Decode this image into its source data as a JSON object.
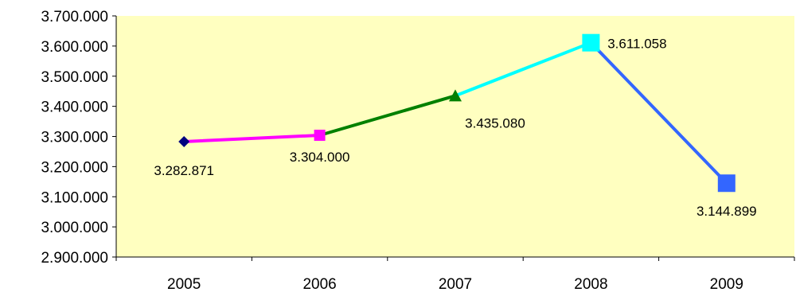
{
  "chart_data": {
    "type": "line",
    "title": "",
    "xlabel": "",
    "ylabel": "",
    "categories": [
      "2005",
      "2006",
      "2007",
      "2008",
      "2009"
    ],
    "values": [
      3282871,
      3304000,
      3435080,
      3611058,
      3144899
    ],
    "data_labels": [
      "3.282.871",
      "3.304.000",
      "3.435.080",
      "3.611.058",
      "3.144.899"
    ],
    "ylim": [
      2900000,
      3700000
    ],
    "ytick_values": [
      2900000,
      3000000,
      3100000,
      3200000,
      3300000,
      3400000,
      3500000,
      3600000,
      3700000
    ],
    "ytick_labels": [
      "2.900.000",
      "3.000.000",
      "3.100.000",
      "3.200.000",
      "3.300.000",
      "3.400.000",
      "3.500.000",
      "3.600.000",
      "3.700.000"
    ],
    "grid": false,
    "legend": "none",
    "plot_background": "#FFFFC0",
    "segment_colors": [
      "#FF00FF",
      "#008000",
      "#00FFFF",
      "#3366FF"
    ],
    "markers": [
      {
        "shape": "diamond",
        "color": "#000080"
      },
      {
        "shape": "square",
        "color": "#FF00FF"
      },
      {
        "shape": "triangle",
        "color": "#008000"
      },
      {
        "shape": "square",
        "color": "#00FFFF"
      },
      {
        "shape": "square",
        "color": "#3366FF"
      }
    ]
  }
}
